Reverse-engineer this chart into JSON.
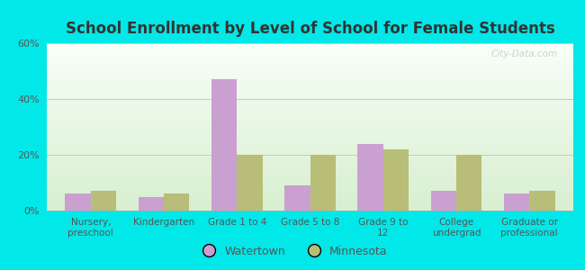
{
  "title": "School Enrollment by Level of School for Female Students",
  "categories": [
    "Nursery,\npreschool",
    "Kindergarten",
    "Grade 1 to 4",
    "Grade 5 to 8",
    "Grade 9 to\n12",
    "College\nundergrad",
    "Graduate or\nprofessional"
  ],
  "watertown": [
    6,
    5,
    47,
    9,
    24,
    7,
    6
  ],
  "minnesota": [
    7,
    6,
    20,
    20,
    22,
    20,
    7
  ],
  "watertown_color": "#c9a0d0",
  "minnesota_color": "#b8be78",
  "background_color": "#00e8e8",
  "title_color": "#333333",
  "tick_color": "#555555",
  "ylim": [
    0,
    60
  ],
  "yticks": [
    0,
    20,
    40,
    60
  ],
  "ytick_labels": [
    "0%",
    "20%",
    "40%",
    "60%"
  ],
  "legend_watertown": "Watertown",
  "legend_minnesota": "Minnesota",
  "watermark": "City-Data.com",
  "bar_width": 0.35,
  "grid_color": "#e8b0b0",
  "plot_bg_top": "#f8fff8",
  "plot_bg_bottom": "#d8efd0"
}
